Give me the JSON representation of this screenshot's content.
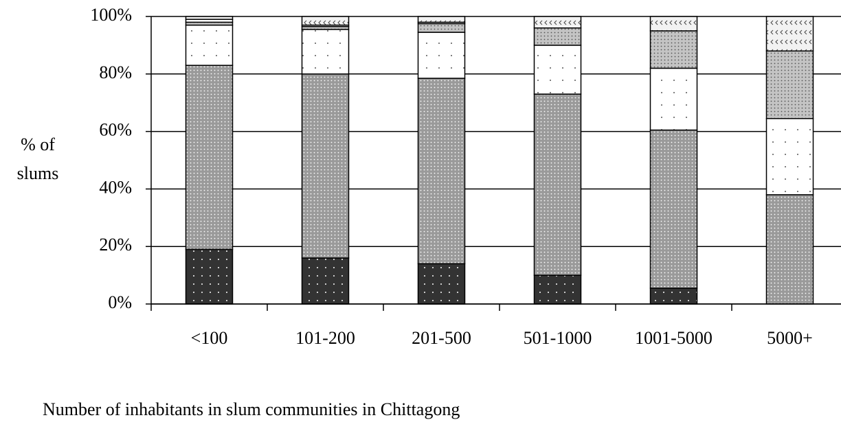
{
  "chart_data": {
    "type": "bar",
    "stacked": true,
    "x_label": "Number of inhabitants in slum communities in Chittagong",
    "y_label": [
      "% of",
      "slums"
    ],
    "categories": [
      "<100",
      "101-200",
      "201-500",
      "501-1000",
      "1001-5000",
      "5000+"
    ],
    "series": [
      {
        "color": "#333333",
        "values": [
          19,
          16,
          14,
          10,
          5.5,
          0
        ]
      },
      {
        "color": "#9a9a9a",
        "values": [
          64,
          64,
          64.5,
          63,
          55,
          38
        ]
      },
      {
        "color": "#ffffff",
        "values": [
          14,
          15.5,
          16,
          17,
          21.5,
          26.5
        ]
      },
      {
        "color": "#c4c4c4",
        "values": [
          1,
          1,
          3,
          6,
          13,
          23.5
        ]
      },
      {
        "color": "#ffffff",
        "values": [
          1,
          0.5,
          0.5,
          0,
          0,
          0
        ]
      },
      {
        "color": "#f2f2f2",
        "values": [
          1,
          3,
          2,
          4,
          5,
          12
        ]
      }
    ],
    "ylim": [
      0,
      100
    ],
    "yticks": [
      {
        "value": 0,
        "label": "0%"
      },
      {
        "value": 20,
        "label": "20%"
      },
      {
        "value": 40,
        "label": "40%"
      },
      {
        "value": 60,
        "label": "60%"
      },
      {
        "value": 80,
        "label": "80%"
      },
      {
        "value": 100,
        "label": "100%"
      }
    ],
    "grid": true
  }
}
